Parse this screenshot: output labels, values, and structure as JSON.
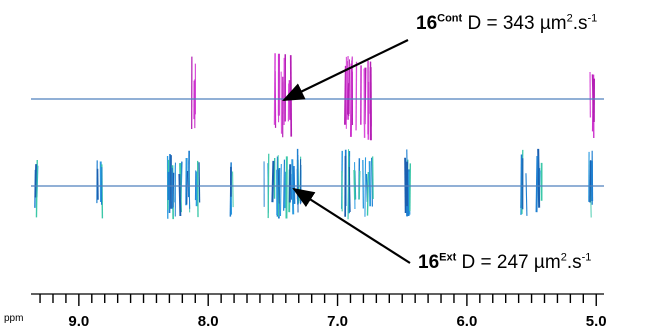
{
  "chart_data": {
    "type": "scatter",
    "x_unit_label": "ppm",
    "xlim": [
      9.37,
      4.94
    ],
    "x_ticks": [
      "9.0",
      "8.0",
      "7.0",
      "6.0",
      "5.0"
    ],
    "line_color": "#4f81bd",
    "annotations": [
      {
        "compound": "16",
        "superscript": "Cont",
        "text": "D = 343 µm",
        "unit_exp": "2",
        "unit_tail": ".s",
        "unit_exp2": "-1",
        "diffusion_um2_per_s": 343,
        "arrow_to_ppm": 7.38
      },
      {
        "compound": "16",
        "superscript": "Ext",
        "text": "D = 247 µm",
        "unit_exp": "2",
        "unit_tail": ".s",
        "unit_exp2": "-1",
        "diffusion_um2_per_s": 247,
        "arrow_to_ppm": 7.25
      }
    ],
    "series": [
      {
        "name": "16Cont",
        "color": "#cc33cc",
        "signals_ppm": [
          8.11,
          7.47,
          7.44,
          7.41,
          7.38,
          6.93,
          6.9,
          6.87,
          6.8,
          6.76,
          5.03
        ]
      },
      {
        "name": "16Ext",
        "color": "#1e7fd0",
        "signals_ppm": [
          9.32,
          8.84,
          8.3,
          8.27,
          8.21,
          8.15,
          8.08,
          7.82,
          7.55,
          7.48,
          7.44,
          7.4,
          7.36,
          7.32,
          7.27,
          6.95,
          6.92,
          6.88,
          6.82,
          6.78,
          6.74,
          6.47,
          6.45,
          5.56,
          5.44,
          5.04
        ]
      }
    ]
  }
}
